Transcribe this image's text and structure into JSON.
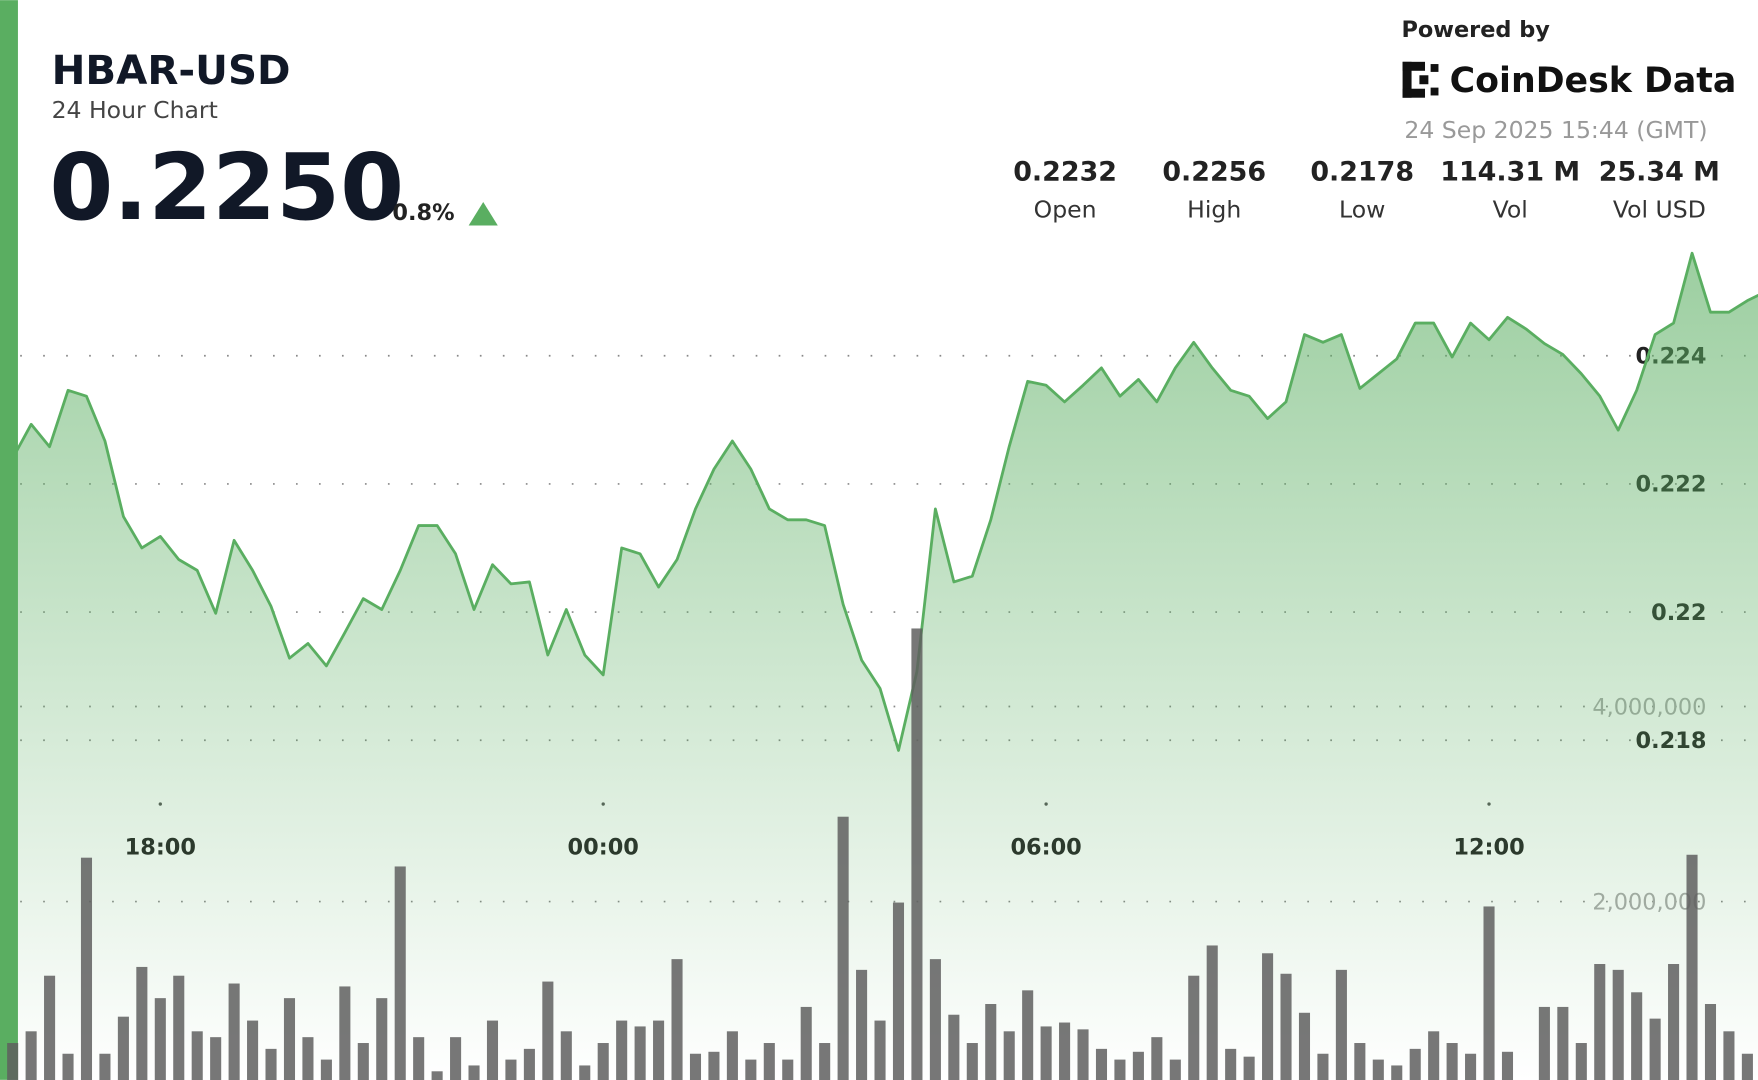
{
  "header": {
    "title": "HBAR-USD",
    "subtitle": "24 Hour Chart",
    "price": "0.2250",
    "change": "0.8%",
    "powered_by": "Powered by",
    "brand": "CoinDesk Data",
    "timestamp": "24 Sep 2025 15:44 (GMT)",
    "stats": [
      {
        "value": "0.2232",
        "label": "Open"
      },
      {
        "value": "0.2256",
        "label": "High"
      },
      {
        "value": "0.2178",
        "label": "Low"
      },
      {
        "value": "114.31 M",
        "label": "Vol"
      },
      {
        "value": "25.34 M",
        "label": "Vol USD"
      }
    ]
  },
  "chart_data": {
    "type": "area",
    "x": [
      "16:00",
      "16:15",
      "16:30",
      "16:45",
      "17:00",
      "17:15",
      "17:30",
      "17:45",
      "18:00",
      "18:15",
      "18:30",
      "18:45",
      "19:00",
      "19:15",
      "19:30",
      "19:45",
      "20:00",
      "20:15",
      "20:30",
      "20:45",
      "21:00",
      "21:15",
      "21:30",
      "21:45",
      "22:00",
      "22:15",
      "22:30",
      "22:45",
      "23:00",
      "23:15",
      "23:30",
      "23:45",
      "00:00",
      "00:15",
      "00:30",
      "00:45",
      "01:00",
      "01:15",
      "01:30",
      "01:45",
      "02:00",
      "02:15",
      "02:30",
      "02:45",
      "03:00",
      "03:15",
      "03:30",
      "03:45",
      "04:00",
      "04:15",
      "04:30",
      "04:45",
      "05:00",
      "05:15",
      "05:30",
      "05:45",
      "06:00",
      "06:15",
      "06:30",
      "06:45",
      "07:00",
      "07:15",
      "07:30",
      "07:45",
      "08:00",
      "08:15",
      "08:30",
      "08:45",
      "09:00",
      "09:15",
      "09:30",
      "09:45",
      "10:00",
      "10:15",
      "10:30",
      "10:45",
      "11:00",
      "11:15",
      "11:30",
      "11:45",
      "12:00",
      "12:15",
      "12:30",
      "12:45",
      "13:00",
      "13:15",
      "13:30",
      "13:45",
      "14:00",
      "14:15",
      "14:30",
      "14:45",
      "15:00",
      "15:15",
      "15:30",
      "15:45"
    ],
    "series": [
      {
        "color": "#5aae61",
        "values": [
          0.2224,
          0.22293,
          0.22258,
          0.22346,
          0.22337,
          0.22267,
          0.22149,
          0.221,
          0.22118,
          0.22082,
          0.22065,
          0.21998,
          0.22112,
          0.22065,
          0.22009,
          0.21928,
          0.21951,
          0.21916,
          0.21968,
          0.22021,
          0.22004,
          0.22065,
          0.22135,
          0.22135,
          0.22091,
          0.22004,
          0.22074,
          0.22044,
          0.22047,
          0.21933,
          0.22004,
          0.21933,
          0.21902,
          0.221,
          0.22091,
          0.22039,
          0.22082,
          0.22161,
          0.22223,
          0.22267,
          0.22223,
          0.22161,
          0.22144,
          0.22144,
          0.22135,
          0.22012,
          0.21925,
          0.21881,
          0.21784,
          0.21907,
          0.22161,
          0.22047,
          0.22056,
          0.22144,
          0.22258,
          0.2236,
          0.22354,
          0.22328,
          0.22354,
          0.22381,
          0.22337,
          0.22363,
          0.22328,
          0.22381,
          0.22421,
          0.22381,
          0.22346,
          0.22337,
          0.22302,
          0.22328,
          0.22433,
          0.22421,
          0.22433,
          0.22349,
          0.22372,
          0.22395,
          0.22451,
          0.22451,
          0.22398,
          0.22451,
          0.22425,
          0.2246,
          0.22442,
          0.22419,
          0.22402,
          0.22372,
          0.22337,
          0.22284,
          0.22346,
          0.22433,
          0.22451,
          0.2256,
          0.22468,
          0.22468,
          0.22486,
          0.225
        ]
      },
      {
        "color": "#5f5f5f",
        "type": "bar",
        "axis": "y2",
        "values": [
          550000,
          670000,
          1240000,
          440000,
          2450000,
          440000,
          820000,
          1330000,
          1010000,
          1240000,
          670000,
          610000,
          1160000,
          780000,
          490000,
          1010000,
          610000,
          380000,
          1130000,
          550000,
          1010000,
          2360000,
          610000,
          260000,
          610000,
          320000,
          780000,
          380000,
          490000,
          1180000,
          670000,
          320000,
          550000,
          780000,
          720000,
          780000,
          1410000,
          440000,
          460000,
          670000,
          380000,
          550000,
          380000,
          920000,
          550000,
          2870000,
          1300000,
          780000,
          1990000,
          4800000,
          1410000,
          840000,
          550000,
          950000,
          670000,
          1090000,
          720000,
          760000,
          690000,
          490000,
          380000,
          460000,
          610000,
          380000,
          1240000,
          1550000,
          490000,
          410000,
          1470000,
          1260000,
          860000,
          440000,
          1300000,
          550000,
          380000,
          320000,
          490000,
          670000,
          550000,
          440000,
          1950000,
          460000,
          50000,
          920000,
          920000,
          550000,
          1360000,
          1300000,
          1070000,
          800000,
          1360000,
          2480000,
          950000,
          670000,
          440000,
          320000
        ]
      }
    ],
    "xticks": [
      "18:00",
      "00:00",
      "06:00",
      "12:00"
    ],
    "ylim": [
      0.2127,
      0.2257
    ],
    "yticks": [
      0.218,
      0.22,
      0.222,
      0.224
    ],
    "y2lim": [
      0,
      5000000
    ],
    "y2ticks": [
      {
        "value": 2000000,
        "label": "2,000,000"
      },
      {
        "value": 4000000,
        "label": "4,000,000"
      }
    ],
    "grid": true
  }
}
